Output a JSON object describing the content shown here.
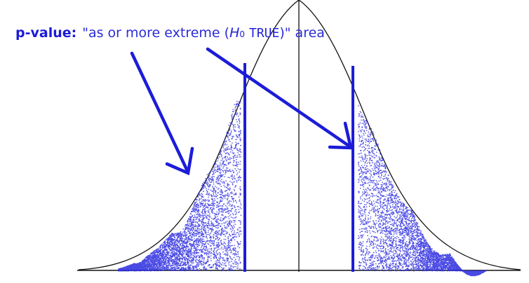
{
  "annotation": {
    "prefix": "p-value:",
    "text_before": "\"as or more extreme (",
    "hypothesis_symbol": "H",
    "hypothesis_subscript": "0",
    "hypothesis_state": "TRUE",
    "text_after": ")\" area"
  },
  "colors": {
    "ink": "#1f1fd9",
    "curve": "#111111",
    "axis": "#111111"
  }
}
